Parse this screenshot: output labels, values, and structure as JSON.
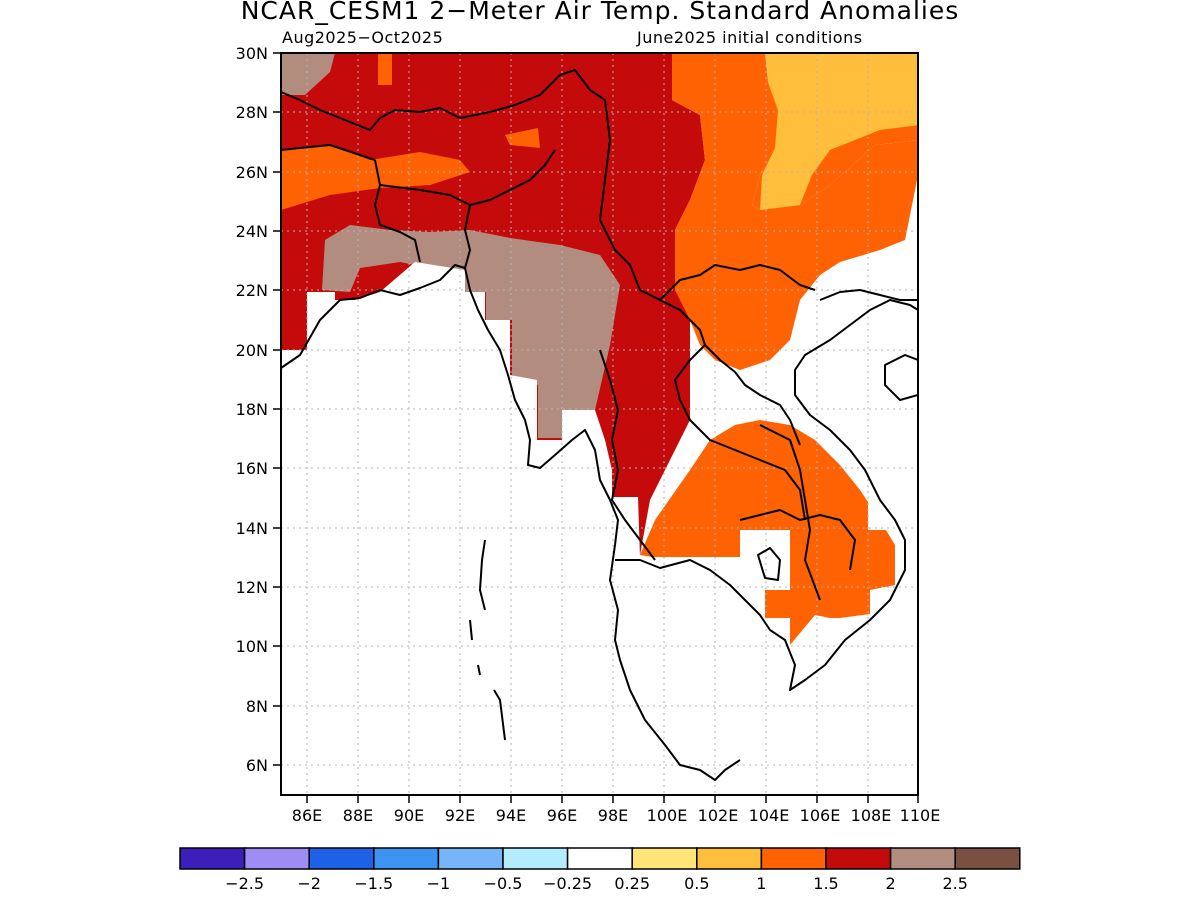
{
  "title": "NCAR_CESM1 2−Meter Air Temp. Standard Anomalies",
  "subtitle_left": "Aug2025−Oct2025",
  "subtitle_right": "June2025 initial conditions",
  "map": {
    "lon_range": [
      85,
      110
    ],
    "lat_range": [
      5,
      30
    ],
    "lat_ticks": [
      "30N",
      "28N",
      "26N",
      "24N",
      "22N",
      "20N",
      "18N",
      "16N",
      "14N",
      "12N",
      "10N",
      "8N",
      "6N"
    ],
    "lon_ticks": [
      "86E",
      "88E",
      "90E",
      "92E",
      "94E",
      "96E",
      "98E",
      "100E",
      "102E",
      "104E",
      "106E",
      "108E",
      "110E"
    ],
    "grid": "dotted"
  },
  "colorbar": {
    "colors": [
      "#3b1fb8",
      "#9f8cf4",
      "#1d61e6",
      "#3c93f2",
      "#76b6f8",
      "#b3edfb",
      "#ffffff",
      "#ffe478",
      "#ffbe3b",
      "#ff6203",
      "#c40a0a",
      "#b38c80",
      "#7a5043"
    ],
    "labels": [
      "−2.5",
      "−2",
      "−1.5",
      "−1",
      "−0.5",
      "−0.25",
      "0.25",
      "0.5",
      "1",
      "1.5",
      "2",
      "2.5"
    ]
  }
}
